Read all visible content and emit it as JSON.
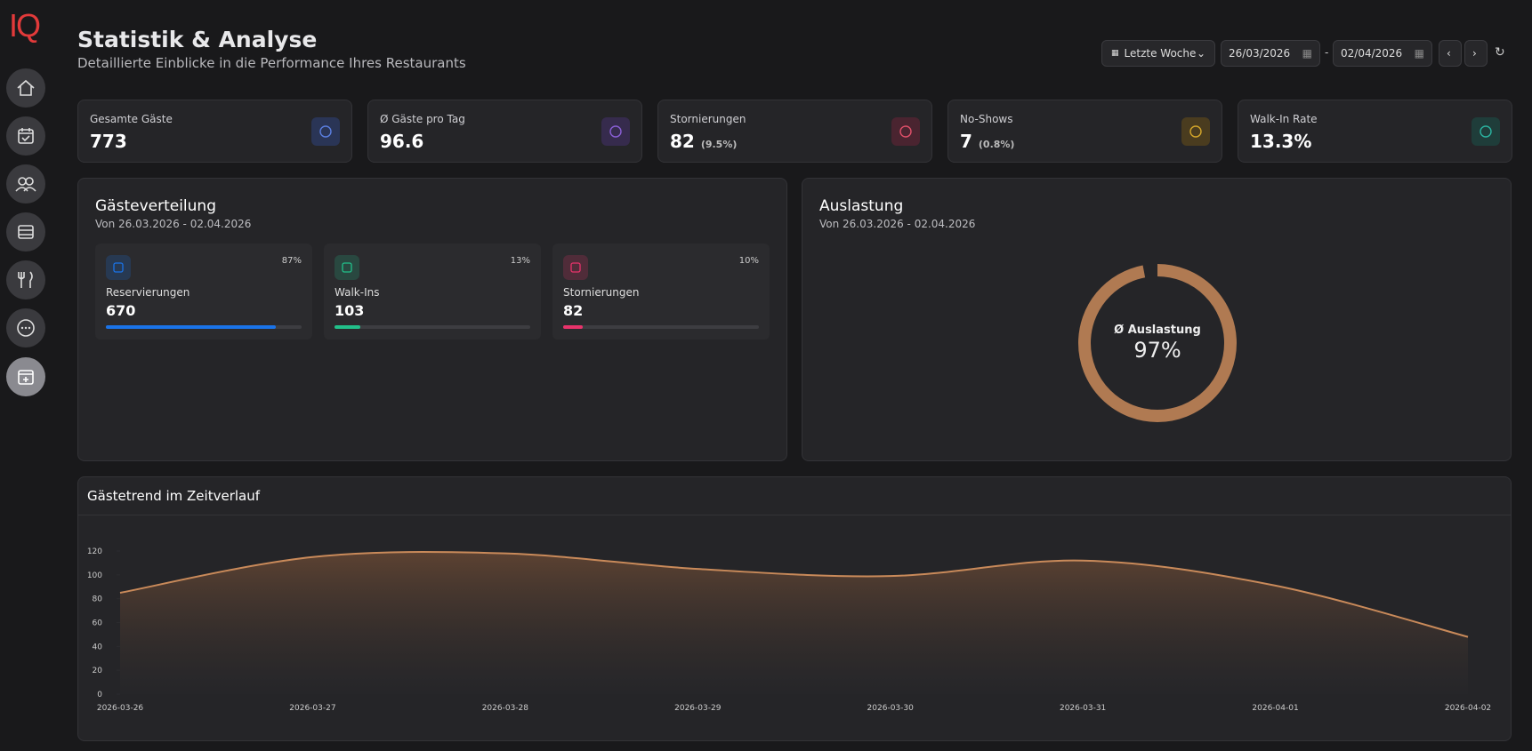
{
  "brand": "IQ",
  "header": {
    "title": "Statistik & Analyse",
    "subtitle": "Detaillierte Einblicke in die Performance Ihres Restaurants"
  },
  "controls": {
    "range": "Letzte Woche",
    "from": {
      "day": "26",
      "month": "03",
      "year": "2026"
    },
    "separator": "-",
    "to": {
      "day": "02",
      "month": "04",
      "year": "2026"
    }
  },
  "kpis": [
    {
      "label": "Gesamte Gäste",
      "value": 773
    },
    {
      "label": "Ø Gäste pro Tag",
      "value": 96.6
    },
    {
      "label": "Stornierungen",
      "value": 82,
      "note": "(9.5%)"
    },
    {
      "label": "No-Shows",
      "value": 7,
      "note": "(0.8%)"
    },
    {
      "label": "Walk-In Rate",
      "value": "13.3%"
    }
  ],
  "distribution": {
    "title": "Gästeverteilung",
    "period": "Von 26.03.2026 - 02.04.2026",
    "items": [
      {
        "label": "Reservierungen",
        "value": 670,
        "percent": 87,
        "percent_label": "87%",
        "color": "#1a73e8"
      },
      {
        "label": "Walk-Ins",
        "value": 103,
        "percent": 13,
        "percent_label": "13%",
        "color": "#22c08a"
      },
      {
        "label": "Stornierungen",
        "value": 82,
        "percent": 10,
        "percent_label": "10%",
        "color": "#e8336b"
      }
    ]
  },
  "occupancy": {
    "title": "Auslastung",
    "period": "Von 26.03.2026 - 02.04.2026",
    "label": "Ø Auslastung",
    "value": 97,
    "value_label": "97%",
    "color": "#b07a52"
  },
  "trend": {
    "title": "Gästetrend im Zeitverlauf"
  },
  "chart_data": {
    "type": "area",
    "x": [
      "2026-03-26",
      "2026-03-27",
      "2026-03-28",
      "2026-03-29",
      "2026-03-30",
      "2026-03-31",
      "2026-04-01",
      "2026-04-02"
    ],
    "values": [
      85,
      115,
      118,
      105,
      99,
      112,
      91,
      48
    ],
    "color": "#c98a5a",
    "ylim": [
      0,
      120
    ],
    "yticks": [
      0,
      20,
      40,
      60,
      80,
      100,
      120
    ]
  }
}
